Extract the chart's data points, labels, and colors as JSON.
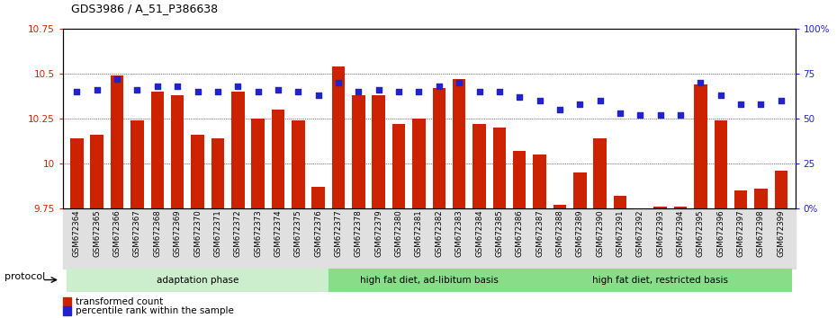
{
  "title": "GDS3986 / A_51_P386638",
  "samples": [
    "GSM672364",
    "GSM672365",
    "GSM672366",
    "GSM672367",
    "GSM672368",
    "GSM672369",
    "GSM672370",
    "GSM672371",
    "GSM672372",
    "GSM672373",
    "GSM672374",
    "GSM672375",
    "GSM672376",
    "GSM672377",
    "GSM672378",
    "GSM672379",
    "GSM672380",
    "GSM672381",
    "GSM672382",
    "GSM672383",
    "GSM672384",
    "GSM672385",
    "GSM672386",
    "GSM672387",
    "GSM672388",
    "GSM672389",
    "GSM672390",
    "GSM672391",
    "GSM672392",
    "GSM672393",
    "GSM672394",
    "GSM672395",
    "GSM672396",
    "GSM672397",
    "GSM672398",
    "GSM672399"
  ],
  "bar_values": [
    10.14,
    10.16,
    10.49,
    10.24,
    10.4,
    10.38,
    10.16,
    10.14,
    10.4,
    10.25,
    10.3,
    10.24,
    9.87,
    10.54,
    10.38,
    10.38,
    10.22,
    10.25,
    10.42,
    10.47,
    10.22,
    10.2,
    10.07,
    10.05,
    9.77,
    9.95,
    10.14,
    9.82,
    9.75,
    9.76,
    9.76,
    10.44,
    10.24,
    9.85,
    9.86,
    9.96
  ],
  "percentile_values": [
    65,
    66,
    72,
    66,
    68,
    68,
    65,
    65,
    68,
    65,
    66,
    65,
    63,
    70,
    65,
    66,
    65,
    65,
    68,
    70,
    65,
    65,
    62,
    60,
    55,
    58,
    60,
    53,
    52,
    52,
    52,
    70,
    63,
    58,
    58,
    60
  ],
  "ylim_left": [
    9.75,
    10.75
  ],
  "ylim_right": [
    0,
    100
  ],
  "yticks_left": [
    9.75,
    10.0,
    10.25,
    10.5,
    10.75
  ],
  "ytick_labels_left": [
    "9.75",
    "10",
    "10.25",
    "10.5",
    "10.75"
  ],
  "yticks_right": [
    0,
    25,
    50,
    75,
    100
  ],
  "ytick_labels_right": [
    "0%",
    "25",
    "50",
    "75",
    "100%"
  ],
  "bar_color": "#cc2200",
  "dot_color": "#2222cc",
  "group1_label": "adaptation phase",
  "group2_label": "high fat diet, ad-libitum basis",
  "group3_label": "high fat diet, restricted basis",
  "group1_count": 13,
  "group2_count": 10,
  "group3_count": 13,
  "group1_color": "#cceecc",
  "group2_color": "#88dd88",
  "group3_color": "#88dd88",
  "protocol_label": "protocol",
  "legend1": "transformed count",
  "legend2": "percentile rank within the sample",
  "bg_color": "#ffffff",
  "xtick_bg": "#e0e0e0"
}
